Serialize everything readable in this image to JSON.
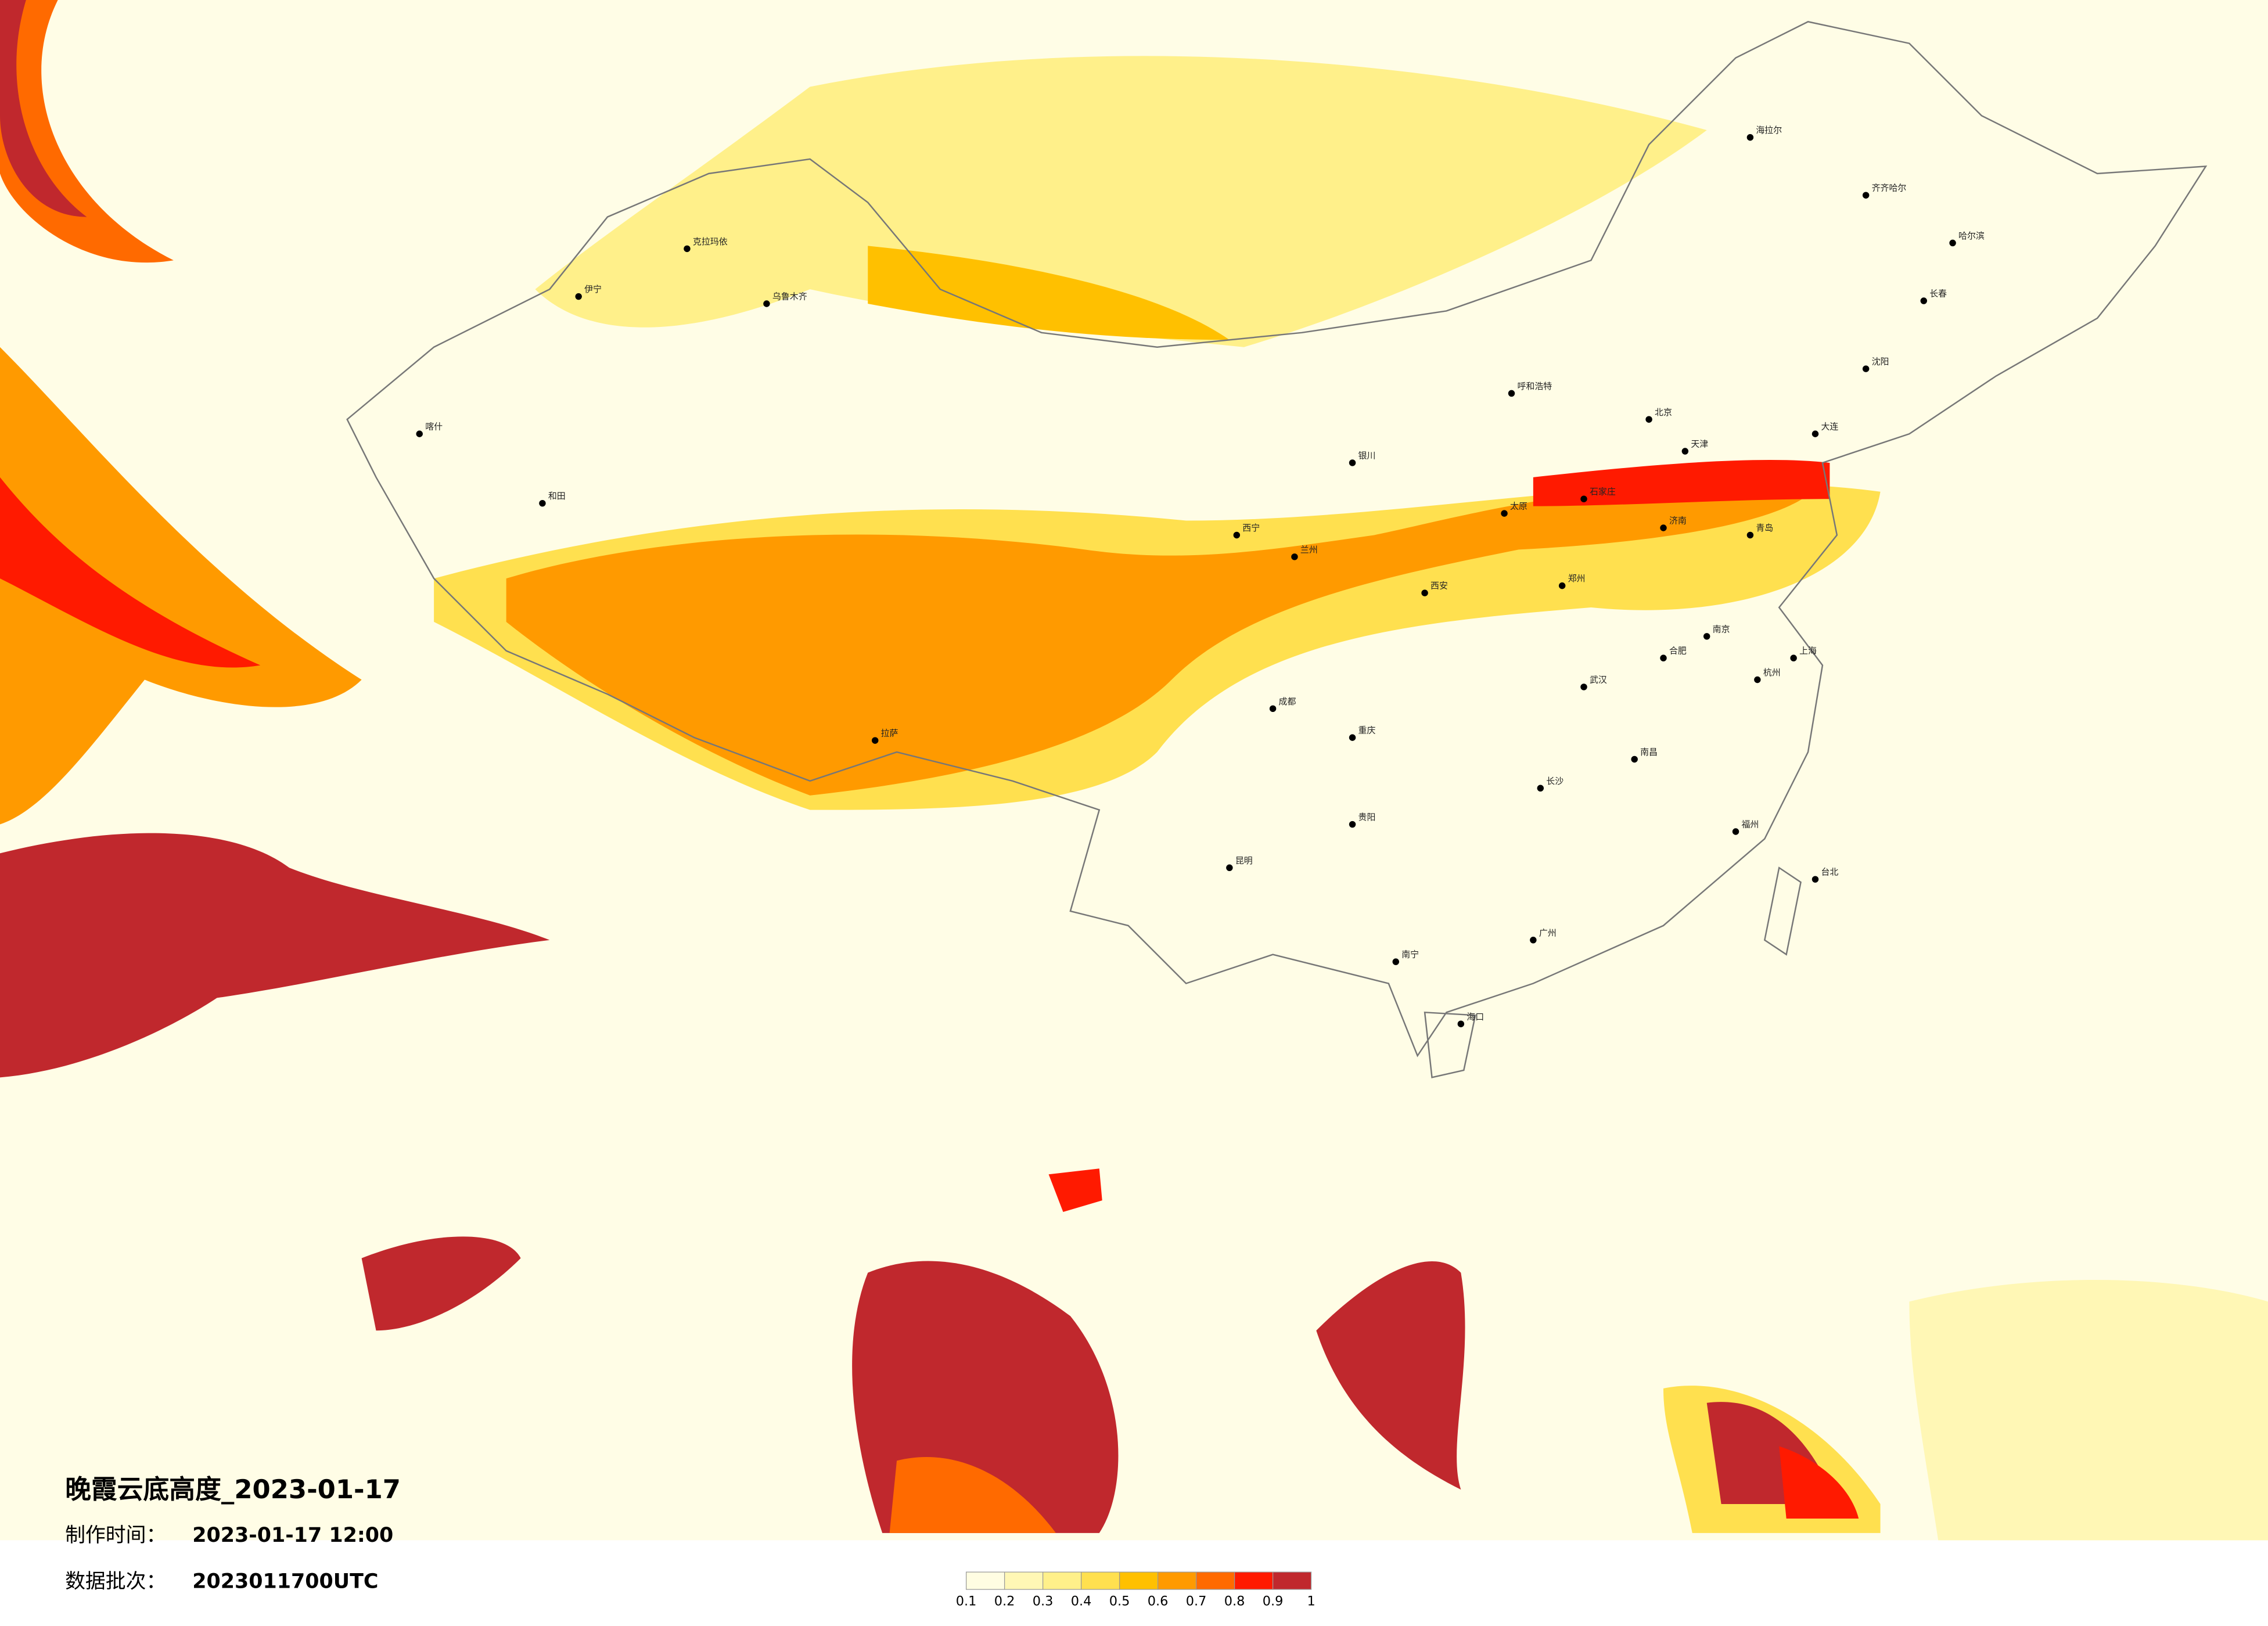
{
  "map": {
    "title": "晚霞云底高度_2023-01-17",
    "production_time_label": "制作时间：",
    "production_time": "2023-01-17 12:00",
    "batch_label": "数据批次：",
    "batch": "2023011700UTC",
    "colorbar": {
      "ticks": [
        0.1,
        0.2,
        0.3,
        0.4,
        0.5,
        0.6,
        0.7,
        0.8,
        0.9,
        1
      ],
      "colors": [
        "#fffde2",
        "#fff7b5",
        "#fff08a",
        "#ffe04f",
        "#ffc000",
        "#ff9a00",
        "#ff6a00",
        "#ff1a00",
        "#c0282d"
      ]
    },
    "cities": [
      "哈尔滨",
      "长春",
      "沈阳",
      "北京",
      "天津",
      "石家庄",
      "太原",
      "呼和浩特",
      "济南",
      "郑州",
      "西安",
      "兰州",
      "西宁",
      "银川",
      "乌鲁木齐",
      "拉萨",
      "成都",
      "重庆",
      "贵阳",
      "昆明",
      "南宁",
      "广州",
      "海口",
      "长沙",
      "武汉",
      "南昌",
      "杭州",
      "上海",
      "南京",
      "合肥",
      "福州",
      "台北",
      "喀什",
      "和田",
      "伊宁",
      "克拉玛依",
      "海拉尔",
      "齐齐哈尔",
      "大连",
      "青岛"
    ]
  }
}
